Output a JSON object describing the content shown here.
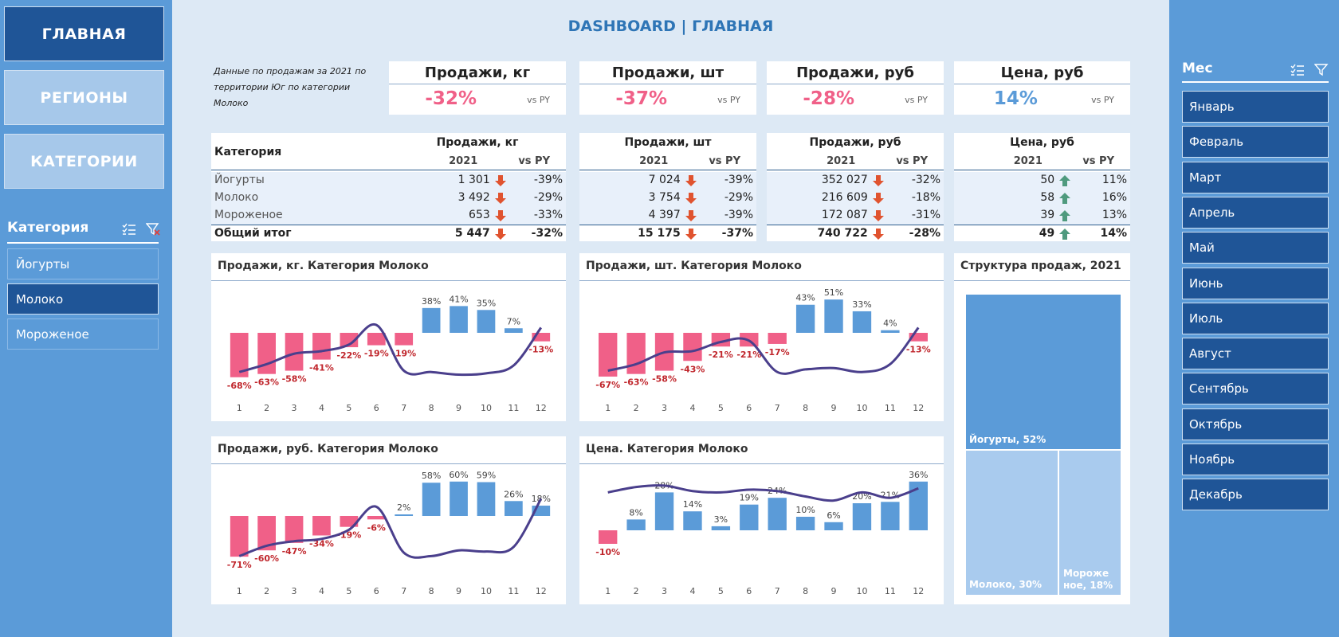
{
  "title": "DASHBOARD | ГЛАВНАЯ",
  "nav": [
    "ГЛАВНАЯ",
    "РЕГИОНЫ",
    "КАТЕГОРИИ"
  ],
  "category_slicer": {
    "title": "Категория",
    "items": [
      "Йогурты",
      "Молоко",
      "Мороженое"
    ],
    "selected": "Молоко"
  },
  "month_slicer": {
    "title": "Мес",
    "items": [
      "Январь",
      "Февраль",
      "Март",
      "Апрель",
      "Май",
      "Июнь",
      "Июль",
      "Август",
      "Сентябрь",
      "Октябрь",
      "Ноябрь",
      "Декабрь"
    ]
  },
  "subtitle": "Данные по продажам за 2021 по территории Юг по категории Молоко",
  "kpis": [
    {
      "title": "Продажи, кг",
      "value": "-32%",
      "vs": "vs PY",
      "sign": "neg"
    },
    {
      "title": "Продажи, шт",
      "value": "-37%",
      "vs": "vs PY",
      "sign": "neg"
    },
    {
      "title": "Продажи, руб",
      "value": "-28%",
      "vs": "vs PY",
      "sign": "neg"
    },
    {
      "title": "Цена, руб",
      "value": "14%",
      "vs": "vs PY",
      "sign": "pos"
    }
  ],
  "table": {
    "category_header": "Категория",
    "year_label": "2021",
    "vs_label": "vs PY",
    "groups": [
      {
        "title": "Продажи, кг",
        "rows": [
          {
            "v": "1 301",
            "p": "-39%",
            "dir": "down"
          },
          {
            "v": "3 492",
            "p": "-29%",
            "dir": "down"
          },
          {
            "v": "653",
            "p": "-33%",
            "dir": "down"
          },
          {
            "v": "5 447",
            "p": "-32%",
            "dir": "down"
          }
        ]
      },
      {
        "title": "Продажи, шт",
        "rows": [
          {
            "v": "7 024",
            "p": "-39%",
            "dir": "down"
          },
          {
            "v": "3 754",
            "p": "-29%",
            "dir": "down"
          },
          {
            "v": "4 397",
            "p": "-39%",
            "dir": "down"
          },
          {
            "v": "15 175",
            "p": "-37%",
            "dir": "down"
          }
        ]
      },
      {
        "title": "Продажи, руб",
        "rows": [
          {
            "v": "352 027",
            "p": "-32%",
            "dir": "down"
          },
          {
            "v": "216 609",
            "p": "-18%",
            "dir": "down"
          },
          {
            "v": "172 087",
            "p": "-31%",
            "dir": "down"
          },
          {
            "v": "740 722",
            "p": "-28%",
            "dir": "down"
          }
        ]
      },
      {
        "title": "Цена, руб",
        "rows": [
          {
            "v": "50",
            "p": "11%",
            "dir": "up"
          },
          {
            "v": "58",
            "p": "16%",
            "dir": "up"
          },
          {
            "v": "39",
            "p": "13%",
            "dir": "up"
          },
          {
            "v": "49",
            "p": "14%",
            "dir": "up"
          }
        ]
      }
    ],
    "row_names": [
      "Йогурты",
      "Молоко",
      "Мороженое",
      "Общий итог"
    ]
  },
  "colors": {
    "negative": "#f06088",
    "positive": "#5b9bd8",
    "line": "#4a3f8c",
    "dark_blue": "#1f5597"
  },
  "chart_data": [
    {
      "type": "bar",
      "title": "Продажи, кг. Категория Молоко",
      "categories": [
        "1",
        "2",
        "3",
        "4",
        "5",
        "6",
        "7",
        "8",
        "9",
        "10",
        "11",
        "12"
      ],
      "values": [
        -68,
        -63,
        -58,
        -41,
        -22,
        -19,
        -19,
        38,
        41,
        35,
        7,
        -13
      ],
      "labels": [
        "-68%",
        "-63%",
        "-58%",
        "-41%",
        "-22%",
        "-19%",
        "-19%",
        "38%",
        "41%",
        "35%",
        "7%",
        "-13%"
      ],
      "line": [
        -60,
        -48,
        -32,
        -28,
        -18,
        12,
        -58,
        -60,
        -64,
        -62,
        -50,
        8
      ]
    },
    {
      "type": "bar",
      "title": "Продажи, шт. Категория Молоко",
      "categories": [
        "1",
        "2",
        "3",
        "4",
        "5",
        "6",
        "7",
        "8",
        "9",
        "10",
        "11",
        "12"
      ],
      "values": [
        -67,
        -63,
        -58,
        -43,
        -21,
        -21,
        -17,
        43,
        51,
        33,
        4,
        -13
      ],
      "labels": [
        "-67%",
        "-63%",
        "-58%",
        "-43%",
        "-21%",
        "-21%",
        "-17%",
        "43%",
        "51%",
        "33%",
        "4%",
        "-13%"
      ],
      "line": [
        -58,
        -48,
        -30,
        -28,
        -14,
        -12,
        -60,
        -56,
        -54,
        -60,
        -48,
        8
      ]
    },
    {
      "type": "bar",
      "title": "Продажи, руб. Категория Молоко",
      "categories": [
        "1",
        "2",
        "3",
        "4",
        "5",
        "6",
        "7",
        "8",
        "9",
        "10",
        "11",
        "12"
      ],
      "values": [
        -71,
        -60,
        -47,
        -34,
        -19,
        -6,
        2,
        58,
        60,
        59,
        26,
        18
      ],
      "labels": [
        "-71%",
        "-60%",
        "-47%",
        "-34%",
        "-19%",
        "-6%",
        "2%",
        "58%",
        "60%",
        "59%",
        "26%",
        "18%"
      ],
      "line": [
        -70,
        -52,
        -44,
        -40,
        -24,
        16,
        -64,
        -70,
        -60,
        -62,
        -54,
        30
      ]
    },
    {
      "type": "bar",
      "title": "Цена. Категория Молоко",
      "categories": [
        "1",
        "2",
        "3",
        "4",
        "5",
        "6",
        "7",
        "8",
        "9",
        "10",
        "11",
        "12"
      ],
      "values": [
        -10,
        8,
        28,
        14,
        3,
        19,
        24,
        10,
        6,
        20,
        21,
        36
      ],
      "labels": [
        "-10%",
        "8%",
        "28%",
        "14%",
        "3%",
        "19%",
        "24%",
        "10%",
        "6%",
        "20%",
        "21%",
        "36%"
      ],
      "line": [
        28,
        32,
        33,
        29,
        28,
        30,
        29,
        25,
        22,
        28,
        24,
        31
      ]
    },
    {
      "type": "treemap",
      "title": "Структура продаж, 2021",
      "items": [
        {
          "name": "Йогурты",
          "share": 52,
          "label": "Йогурты, 52%"
        },
        {
          "name": "Молоко",
          "share": 30,
          "label": "Молоко, 30%"
        },
        {
          "name": "Мороженое",
          "share": 18,
          "label_lines": [
            "Мороже",
            "ное, 18%"
          ]
        }
      ]
    }
  ]
}
